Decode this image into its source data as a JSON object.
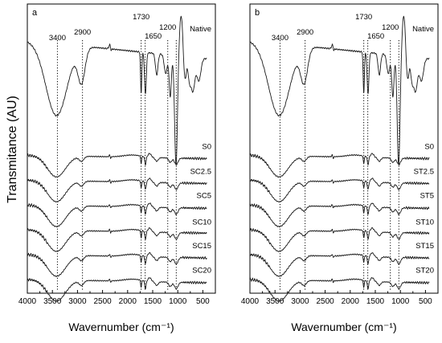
{
  "y_axis_label": "Transmitance (AU)",
  "chart_data": [
    {
      "type": "line",
      "panel_label": "a",
      "xlabel": "Wavernumber (cm⁻¹)",
      "ylabel": "Transmitance (AU)",
      "xlim": [
        4000,
        250
      ],
      "x_reversed": true,
      "xticks": [
        4000,
        3500,
        3000,
        2500,
        2000,
        1500,
        1000,
        500
      ],
      "x_tick_labels": [
        "4000",
        "3500",
        "3000",
        "2500",
        "2000",
        "1500",
        "1000",
        "500"
      ],
      "grid": false,
      "reference_lines": [
        {
          "x": 3400,
          "label": "3400"
        },
        {
          "x": 2900,
          "label": "2900"
        },
        {
          "x": 1730,
          "label": "1730"
        },
        {
          "x": 1650,
          "label": "1650"
        },
        {
          "x": 1200,
          "label": "1200"
        },
        {
          "x": 1030,
          "label": ""
        }
      ],
      "series": [
        {
          "name": "Native",
          "offset": 8.0,
          "style": "native"
        },
        {
          "name": "S0",
          "offset": 4.6,
          "style": "modified"
        },
        {
          "name": "SC2.5",
          "offset": 3.75,
          "style": "modified"
        },
        {
          "name": "SC5",
          "offset": 2.9,
          "style": "modified"
        },
        {
          "name": "SC10",
          "offset": 2.05,
          "style": "modified"
        },
        {
          "name": "SC15",
          "offset": 1.2,
          "style": "modified"
        },
        {
          "name": "SC20",
          "offset": 0.35,
          "style": "modified"
        }
      ]
    },
    {
      "type": "line",
      "panel_label": "b",
      "xlabel": "Wavernumber (cm⁻¹)",
      "ylabel": "",
      "xlim": [
        4000,
        250
      ],
      "x_reversed": true,
      "xticks": [
        4000,
        3500,
        3000,
        2500,
        2000,
        1500,
        1000,
        500
      ],
      "x_tick_labels": [
        "4000",
        "3500",
        "3000",
        "2500",
        "2000",
        "1500",
        "1000",
        "500"
      ],
      "grid": false,
      "reference_lines": [
        {
          "x": 3400,
          "label": "3400"
        },
        {
          "x": 2900,
          "label": "2900"
        },
        {
          "x": 1730,
          "label": "1730"
        },
        {
          "x": 1650,
          "label": "1650"
        },
        {
          "x": 1200,
          "label": "1200"
        },
        {
          "x": 1030,
          "label": ""
        }
      ],
      "series": [
        {
          "name": "Native",
          "offset": 8.0,
          "style": "native"
        },
        {
          "name": "S0",
          "offset": 4.6,
          "style": "modified"
        },
        {
          "name": "ST2.5",
          "offset": 3.75,
          "style": "modified"
        },
        {
          "name": "ST5",
          "offset": 2.9,
          "style": "modified"
        },
        {
          "name": "ST10",
          "offset": 2.05,
          "style": "modified"
        },
        {
          "name": "ST15",
          "offset": 1.2,
          "style": "modified"
        },
        {
          "name": "ST20",
          "offset": 0.35,
          "style": "modified"
        }
      ]
    }
  ]
}
